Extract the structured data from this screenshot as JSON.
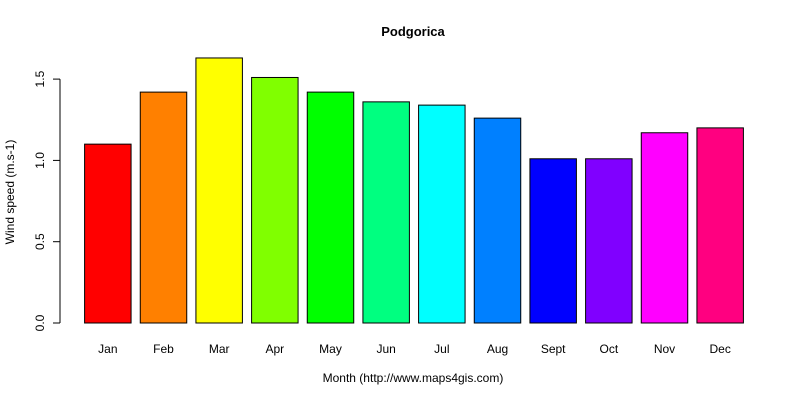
{
  "chart_data": {
    "type": "bar",
    "title": "Podgorica",
    "xlabel": "Month (http://www.maps4gis.com)",
    "ylabel": "Wind speed (m.s-1)",
    "categories": [
      "Jan",
      "Feb",
      "Mar",
      "Apr",
      "May",
      "Jun",
      "Jul",
      "Aug",
      "Sept",
      "Oct",
      "Nov",
      "Dec"
    ],
    "values": [
      1.1,
      1.42,
      1.63,
      1.51,
      1.42,
      1.36,
      1.34,
      1.26,
      1.01,
      1.01,
      1.17,
      1.2
    ],
    "colors": [
      "#FF0000",
      "#FF8000",
      "#FFFF00",
      "#80FF00",
      "#00FF00",
      "#00FF80",
      "#00FFFF",
      "#0080FF",
      "#0000FF",
      "#8000FF",
      "#FF00FF",
      "#FF0080"
    ],
    "ylim": [
      0,
      1.7
    ],
    "yticks": [
      "0.0",
      "0.5",
      "1.0",
      "1.5"
    ],
    "grid": false,
    "legend": "none"
  }
}
